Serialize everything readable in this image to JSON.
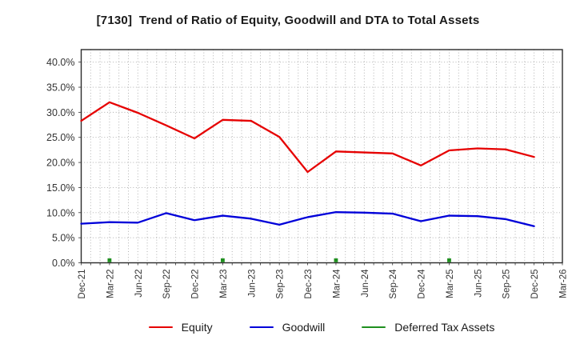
{
  "title": "[7130]  Trend of Ratio of Equity, Goodwill and DTA to Total Assets",
  "chart_data": {
    "type": "line",
    "categories": [
      "Dec-21",
      "Mar-22",
      "Jun-22",
      "Sep-22",
      "Dec-22",
      "Mar-23",
      "Jun-23",
      "Sep-23",
      "Dec-23",
      "Mar-24",
      "Jun-24",
      "Sep-24",
      "Dec-24",
      "Mar-25",
      "Jun-25",
      "Sep-25",
      "Dec-25",
      "Mar-26"
    ],
    "series": [
      {
        "name": "Equity",
        "color": "#e60000",
        "marker": "none",
        "values": [
          28.3,
          32.0,
          29.9,
          27.4,
          24.8,
          28.5,
          28.3,
          25.1,
          18.1,
          22.2,
          22.0,
          21.8,
          19.4,
          22.4,
          22.8,
          22.6,
          21.1,
          null
        ]
      },
      {
        "name": "Goodwill",
        "color": "#0000d9",
        "marker": "none",
        "values": [
          7.8,
          8.1,
          8.0,
          9.9,
          8.5,
          9.4,
          8.8,
          7.6,
          9.1,
          10.1,
          10.0,
          9.8,
          8.3,
          9.4,
          9.3,
          8.7,
          7.3,
          null
        ]
      },
      {
        "name": "Deferred Tax Assets",
        "color": "#1f8f1f",
        "marker": "square",
        "values": [
          null,
          0.5,
          null,
          null,
          null,
          0.5,
          null,
          null,
          null,
          0.5,
          null,
          null,
          null,
          0.5,
          null,
          null,
          null,
          null
        ]
      }
    ],
    "ylim": [
      0,
      42.5
    ],
    "yticks": [
      0,
      5,
      10,
      15,
      20,
      25,
      30,
      35,
      40
    ],
    "ytick_labels": [
      "0.0%",
      "5.0%",
      "10.0%",
      "15.0%",
      "20.0%",
      "25.0%",
      "30.0%",
      "35.0%",
      "40.0%"
    ],
    "xlabel": "",
    "ylabel": "",
    "grid": "dotted",
    "x_minor_divisions": 3,
    "legend_position": "bottom"
  }
}
